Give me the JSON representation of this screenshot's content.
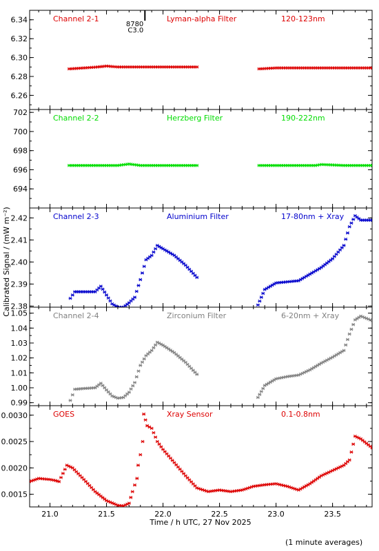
{
  "figure": {
    "ylabel": "Calibrated Signal / (mW m⁻²)",
    "xlabel": "Time / h UTC, 27 Nov 2025",
    "footnote": "(1 minute averages)",
    "xlim": [
      20.82,
      23.85
    ],
    "xticks": [
      "21.0",
      "21.5",
      "22.0",
      "22.5",
      "23.0",
      "23.5"
    ],
    "xtick_values": [
      21.0,
      21.5,
      22.0,
      22.5,
      23.0,
      23.5
    ],
    "event_marker": {
      "x": 21.84,
      "labels": [
        "8780",
        "C3.0"
      ]
    }
  },
  "chart_data": [
    {
      "type": "scatter",
      "channel": "Channel 2-1",
      "filter": "Lyman-alpha Filter",
      "band": "120-123nm",
      "color": "#dd0000",
      "ylim": [
        6.245,
        6.35
      ],
      "yticks": [
        "6.26",
        "6.28",
        "6.30",
        "6.32",
        "6.34"
      ],
      "ytick_values": [
        6.26,
        6.28,
        6.3,
        6.32,
        6.34
      ],
      "segments": [
        {
          "x": [
            21.17,
            21.3,
            21.42,
            21.5,
            21.6,
            21.8,
            22.0,
            22.3
          ],
          "y": [
            6.288,
            6.289,
            6.29,
            6.291,
            6.29,
            6.29,
            6.29,
            6.29
          ]
        },
        {
          "x": [
            22.85,
            23.0,
            23.3,
            23.6,
            23.85
          ],
          "y": [
            6.288,
            6.289,
            6.289,
            6.289,
            6.289
          ]
        }
      ]
    },
    {
      "type": "scatter",
      "channel": "Channel 2-2",
      "filter": "Herzberg Filter",
      "band": "190-222nm",
      "color": "#00dd00",
      "ylim": [
        692.0,
        702.3
      ],
      "yticks": [
        "694",
        "696",
        "698",
        "700",
        "702"
      ],
      "ytick_values": [
        694,
        696,
        698,
        700,
        702
      ],
      "segments": [
        {
          "x": [
            21.17,
            21.4,
            21.6,
            21.7,
            21.8,
            22.0,
            22.3
          ],
          "y": [
            696.45,
            696.45,
            696.45,
            696.6,
            696.45,
            696.45,
            696.45
          ]
        },
        {
          "x": [
            22.85,
            23.0,
            23.35,
            23.4,
            23.6,
            23.85
          ],
          "y": [
            696.45,
            696.45,
            696.45,
            696.55,
            696.45,
            696.45
          ]
        }
      ]
    },
    {
      "type": "scatter",
      "channel": "Channel 2-3",
      "filter": "Aluminium Filter",
      "band": "17-80nm + Xray",
      "color": "#0000cc",
      "ylim": [
        2.3795,
        2.4245
      ],
      "yticks": [
        "2.38",
        "2.39",
        "2.40",
        "2.41",
        "2.42"
      ],
      "ytick_values": [
        2.38,
        2.39,
        2.4,
        2.41,
        2.42
      ],
      "segments": [
        {
          "x": [
            21.18,
            21.22,
            21.3,
            21.4,
            21.45,
            21.5,
            21.55,
            21.6,
            21.65,
            21.7,
            21.75,
            21.8,
            21.85,
            21.9,
            21.95,
            22.0,
            22.1,
            22.2,
            22.3
          ],
          "y": [
            2.3835,
            2.3865,
            2.3865,
            2.3865,
            2.389,
            2.385,
            2.381,
            2.3795,
            2.3795,
            2.3815,
            2.384,
            2.392,
            2.401,
            2.403,
            2.4075,
            2.406,
            2.403,
            2.3985,
            2.393
          ]
        },
        {
          "x": [
            22.84,
            22.9,
            23.0,
            23.1,
            23.2,
            23.3,
            23.4,
            23.5,
            23.6,
            23.65,
            23.7,
            23.75,
            23.85
          ],
          "y": [
            2.3805,
            2.3875,
            2.3905,
            2.391,
            2.3915,
            2.3945,
            2.3975,
            2.4015,
            2.4075,
            2.416,
            2.421,
            2.419,
            2.419
          ]
        }
      ]
    },
    {
      "type": "scatter",
      "channel": "Channel 2-4",
      "filter": "Zirconium Filter",
      "band": "6-20nm + Xray",
      "color": "#808080",
      "ylim": [
        0.988,
        1.054
      ],
      "yticks": [
        "0.99",
        "1.00",
        "1.01",
        "1.02",
        "1.03",
        "1.04",
        "1.05"
      ],
      "ytick_values": [
        0.99,
        1.0,
        1.01,
        1.02,
        1.03,
        1.04,
        1.05
      ],
      "segments": [
        {
          "x": [
            21.18,
            21.22,
            21.3,
            21.4,
            21.45,
            21.5,
            21.55,
            21.6,
            21.65,
            21.7,
            21.75,
            21.8,
            21.85,
            21.9,
            21.95,
            22.0,
            22.1,
            22.2,
            22.3
          ],
          "y": [
            0.9915,
            0.999,
            0.9995,
            1.0,
            1.003,
            0.9985,
            0.9945,
            0.993,
            0.9935,
            0.997,
            1.0035,
            1.015,
            1.0215,
            1.025,
            1.0305,
            1.0285,
            1.0235,
            1.017,
            1.009
          ]
        },
        {
          "x": [
            22.84,
            22.9,
            23.0,
            23.1,
            23.2,
            23.3,
            23.4,
            23.5,
            23.6,
            23.65,
            23.7,
            23.75,
            23.85
          ],
          "y": [
            0.9935,
            1.0015,
            1.006,
            1.0075,
            1.0085,
            1.012,
            1.0165,
            1.0205,
            1.025,
            1.036,
            1.0455,
            1.048,
            1.045
          ]
        }
      ]
    },
    {
      "type": "scatter",
      "channel": "GOES",
      "filter": "Xray Sensor",
      "band": "0.1-0.8nm",
      "color": "#dd0000",
      "ylim": [
        0.00126,
        0.00318
      ],
      "yticks": [
        "0.0015",
        "0.0020",
        "0.0025",
        "0.0030"
      ],
      "ytick_values": [
        0.0015,
        0.002,
        0.0025,
        0.003
      ],
      "segments": [
        {
          "x": [
            20.82,
            20.9,
            21.0,
            21.05,
            21.08,
            21.15,
            21.2,
            21.3,
            21.4,
            21.5,
            21.6,
            21.65,
            21.7,
            21.73,
            21.77
          ],
          "y": [
            0.00174,
            0.0018,
            0.00178,
            0.00176,
            0.00174,
            0.00205,
            0.002,
            0.00178,
            0.00155,
            0.00138,
            0.00129,
            0.00128,
            0.00133,
            0.00155,
            0.0018
          ]
        },
        {
          "x": [
            21.78,
            21.8,
            21.82
          ],
          "y": [
            0.00205,
            0.00225,
            0.0025
          ]
        },
        {
          "x": [
            21.83,
            21.86,
            21.9,
            21.95,
            22.0,
            22.1,
            22.2,
            22.3,
            22.4,
            22.5,
            22.6,
            22.7,
            22.8,
            22.9,
            23.0,
            23.1,
            23.2,
            23.3,
            23.4,
            23.5,
            23.6,
            23.65,
            23.7,
            23.75,
            23.85
          ],
          "y": [
            0.00302,
            0.0028,
            0.00275,
            0.0025,
            0.00235,
            0.0021,
            0.00185,
            0.00162,
            0.00155,
            0.00158,
            0.00155,
            0.00158,
            0.00165,
            0.00168,
            0.0017,
            0.00165,
            0.00158,
            0.0017,
            0.00185,
            0.00195,
            0.00205,
            0.00215,
            0.0026,
            0.00255,
            0.00238
          ]
        }
      ]
    }
  ]
}
